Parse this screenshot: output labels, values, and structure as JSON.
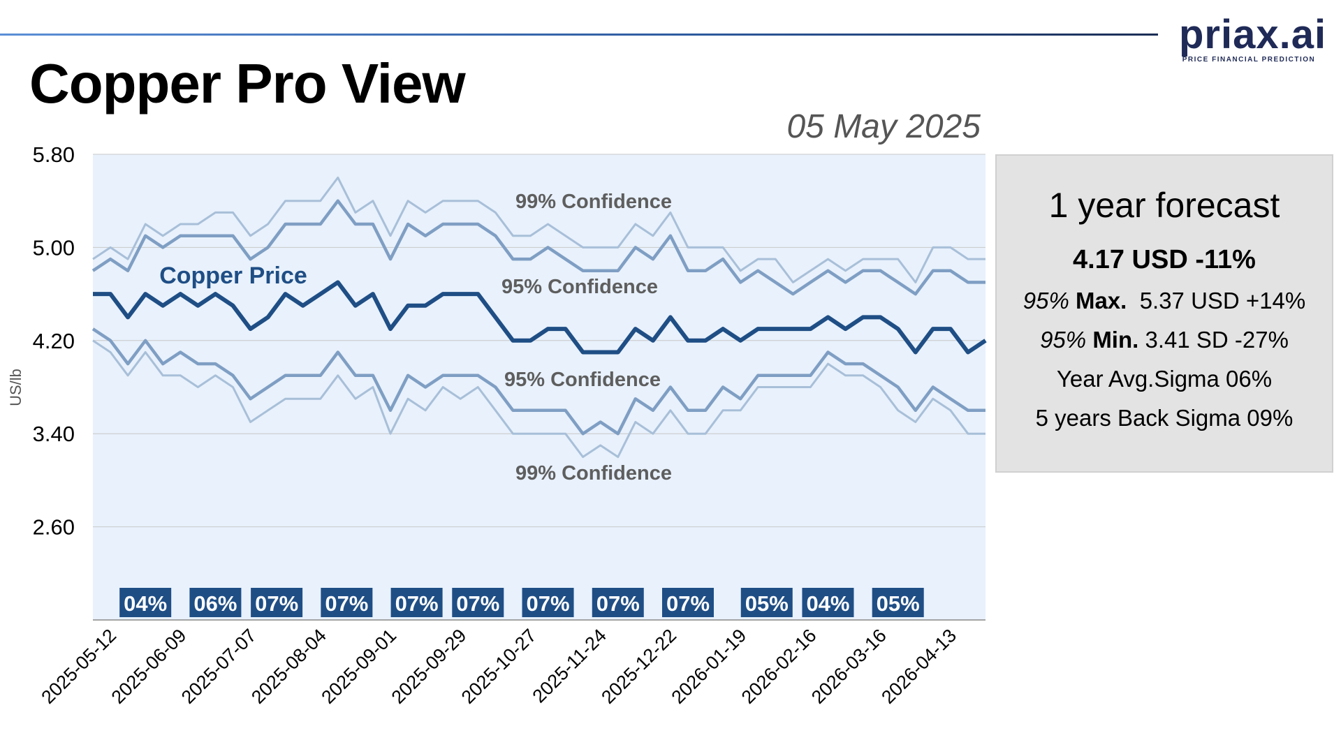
{
  "logo": {
    "main": "priax.ai",
    "sub": "PRICE FINANCIAL PREDICTION"
  },
  "header": {
    "title": "Copper Pro View",
    "date": "05 May 2025"
  },
  "forecast": {
    "title": "1 year forecast",
    "headline": "4.17 USD -11%",
    "max_prefix": "95%",
    "max_label": "Max.",
    "max_value": "5.37 USD +14%",
    "min_prefix": "95%",
    "min_label": "Min.",
    "min_value": "3.41 SD -27%",
    "avg_sigma": "Year Avg.Sigma 06%",
    "back_sigma": "5 years Back Sigma 09%"
  },
  "chart_data": {
    "type": "line",
    "ylabel": "US/lb",
    "ylim": [
      1.8,
      5.8
    ],
    "yticks": [
      "5.80",
      "5.00",
      "4.20",
      "3.40",
      "2.60"
    ],
    "ytick_values": [
      5.8,
      5.0,
      4.2,
      3.4,
      2.6
    ],
    "xtick_labels": [
      "2025-05-12",
      "2025-06-09",
      "2025-07-07",
      "2025-08-04",
      "2025-09-01",
      "2025-09-29",
      "2025-10-27",
      "2025-11-24",
      "2025-12-22",
      "2026-01-19",
      "2026-02-16",
      "2026-03-16",
      "2026-04-13"
    ],
    "x_weeks_start": "2025-05-05",
    "colors": {
      "price": "#1f4e85",
      "band95": "#7f9ec3",
      "band99": "#a8bfd8",
      "plot_bg": "#e8f1fc",
      "grid": "#c8c8c8",
      "label": "#5e5e5e",
      "sigma_box": "#1f4e85"
    },
    "series_labels": {
      "price": "Copper Price",
      "upper99": "99% Confidence",
      "upper95": "95% Confidence",
      "lower95": "95% Confidence",
      "lower99": "99% Confidence"
    },
    "series": [
      {
        "name": "price",
        "values": [
          4.6,
          4.6,
          4.4,
          4.6,
          4.5,
          4.6,
          4.5,
          4.6,
          4.5,
          4.3,
          4.4,
          4.6,
          4.5,
          4.6,
          4.7,
          4.5,
          4.6,
          4.3,
          4.5,
          4.5,
          4.6,
          4.6,
          4.6,
          4.4,
          4.2,
          4.2,
          4.3,
          4.3,
          4.1,
          4.1,
          4.1,
          4.3,
          4.2,
          4.4,
          4.2,
          4.2,
          4.3,
          4.2,
          4.3,
          4.3,
          4.3,
          4.3,
          4.4,
          4.3,
          4.4,
          4.4,
          4.3,
          4.1,
          4.3,
          4.3,
          4.1,
          4.2
        ]
      },
      {
        "name": "upper95",
        "values": [
          4.8,
          4.9,
          4.8,
          5.1,
          5.0,
          5.1,
          5.1,
          5.1,
          5.1,
          4.9,
          5.0,
          5.2,
          5.2,
          5.2,
          5.4,
          5.2,
          5.2,
          4.9,
          5.2,
          5.1,
          5.2,
          5.2,
          5.2,
          5.1,
          4.9,
          4.9,
          5.0,
          4.9,
          4.8,
          4.8,
          4.8,
          5.0,
          4.9,
          5.1,
          4.8,
          4.8,
          4.9,
          4.7,
          4.8,
          4.7,
          4.6,
          4.7,
          4.8,
          4.7,
          4.8,
          4.8,
          4.7,
          4.6,
          4.8,
          4.8,
          4.7,
          4.7
        ]
      },
      {
        "name": "upper99",
        "values": [
          4.9,
          5.0,
          4.9,
          5.2,
          5.1,
          5.2,
          5.2,
          5.3,
          5.3,
          5.1,
          5.2,
          5.4,
          5.4,
          5.4,
          5.6,
          5.3,
          5.4,
          5.1,
          5.4,
          5.3,
          5.4,
          5.4,
          5.4,
          5.3,
          5.1,
          5.1,
          5.2,
          5.1,
          5.0,
          5.0,
          5.0,
          5.2,
          5.1,
          5.3,
          5.0,
          5.0,
          5.0,
          4.8,
          4.9,
          4.9,
          4.7,
          4.8,
          4.9,
          4.8,
          4.9,
          4.9,
          4.9,
          4.7,
          5.0,
          5.0,
          4.9,
          4.9
        ]
      },
      {
        "name": "lower95",
        "values": [
          4.3,
          4.2,
          4.0,
          4.2,
          4.0,
          4.1,
          4.0,
          4.0,
          3.9,
          3.7,
          3.8,
          3.9,
          3.9,
          3.9,
          4.1,
          3.9,
          3.9,
          3.6,
          3.9,
          3.8,
          3.9,
          3.9,
          3.9,
          3.8,
          3.6,
          3.6,
          3.6,
          3.6,
          3.4,
          3.5,
          3.4,
          3.7,
          3.6,
          3.8,
          3.6,
          3.6,
          3.8,
          3.7,
          3.9,
          3.9,
          3.9,
          3.9,
          4.1,
          4.0,
          4.0,
          3.9,
          3.8,
          3.6,
          3.8,
          3.7,
          3.6,
          3.6
        ]
      },
      {
        "name": "lower99",
        "values": [
          4.2,
          4.1,
          3.9,
          4.1,
          3.9,
          3.9,
          3.8,
          3.9,
          3.8,
          3.5,
          3.6,
          3.7,
          3.7,
          3.7,
          3.9,
          3.7,
          3.8,
          3.4,
          3.7,
          3.6,
          3.8,
          3.7,
          3.8,
          3.6,
          3.4,
          3.4,
          3.4,
          3.4,
          3.2,
          3.3,
          3.2,
          3.5,
          3.4,
          3.6,
          3.4,
          3.4,
          3.6,
          3.6,
          3.8,
          3.8,
          3.8,
          3.8,
          4.0,
          3.9,
          3.9,
          3.8,
          3.6,
          3.5,
          3.7,
          3.6,
          3.4,
          3.4
        ]
      }
    ],
    "sigma_boxes": [
      {
        "week": 3,
        "label": "04%"
      },
      {
        "week": 7,
        "label": "06%"
      },
      {
        "week": 10.5,
        "label": "07%"
      },
      {
        "week": 14.5,
        "label": "07%"
      },
      {
        "week": 18.5,
        "label": "07%"
      },
      {
        "week": 22,
        "label": "07%"
      },
      {
        "week": 26,
        "label": "07%"
      },
      {
        "week": 30,
        "label": "07%"
      },
      {
        "week": 34,
        "label": "07%"
      },
      {
        "week": 38.5,
        "label": "05%"
      },
      {
        "week": 42,
        "label": "04%"
      },
      {
        "week": 46,
        "label": "05%"
      }
    ],
    "grid": true
  }
}
